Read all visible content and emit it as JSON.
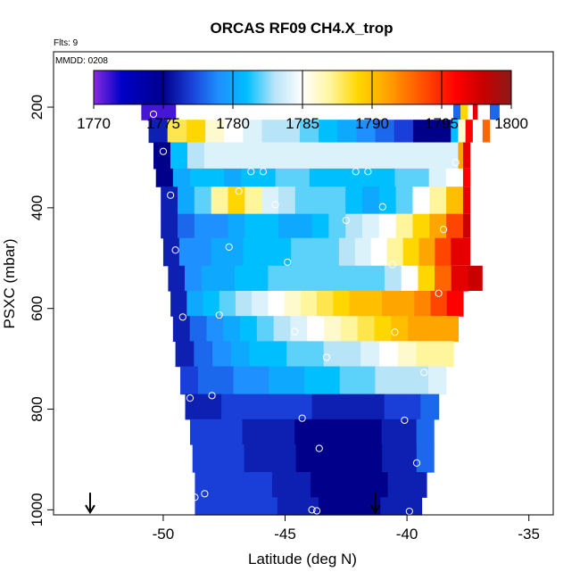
{
  "chart_data": {
    "type": "heatmap",
    "title": "ORCAS RF09 CH4.X_trop",
    "note_flights": "Flts: 9",
    "note_date": "MMDD: 0208",
    "xlabel": "Latitude (deg N)",
    "ylabel": "PSXC (mbar)",
    "xlim": [
      -54.5,
      -34.0
    ],
    "ylim": [
      1010,
      90
    ],
    "x_ticks": [
      -50,
      -45,
      -40,
      -35
    ],
    "x_tick_labels": [
      "-50",
      "-45",
      "-40",
      "-35"
    ],
    "y_ticks": [
      200,
      400,
      600,
      800,
      1000
    ],
    "y_tick_labels": [
      "200",
      "400",
      "600",
      "800",
      "1000"
    ],
    "colorbar": {
      "min": 1770,
      "max": 1800,
      "ticks": [
        1770,
        1775,
        1780,
        1785,
        1790,
        1795,
        1800
      ],
      "tick_labels": [
        "1770",
        "1775",
        "1780",
        "1785",
        "1790",
        "1795",
        "1800"
      ],
      "stops": [
        {
          "v": 1770,
          "c": "#8a2be2"
        },
        {
          "v": 1772,
          "c": "#0000c8"
        },
        {
          "v": 1775,
          "c": "#00008b"
        },
        {
          "v": 1777,
          "c": "#1a3fd8"
        },
        {
          "v": 1779,
          "c": "#1e90ff"
        },
        {
          "v": 1781,
          "c": "#00bfff"
        },
        {
          "v": 1783,
          "c": "#b8e4f7"
        },
        {
          "v": 1785,
          "c": "#ffffff"
        },
        {
          "v": 1787,
          "c": "#fff59d"
        },
        {
          "v": 1789,
          "c": "#ffd700"
        },
        {
          "v": 1791,
          "c": "#ffa500"
        },
        {
          "v": 1794,
          "c": "#ff4500"
        },
        {
          "v": 1796,
          "c": "#ff0000"
        },
        {
          "v": 1798,
          "c": "#c80000"
        },
        {
          "v": 1800,
          "c": "#8b1a1a"
        }
      ]
    },
    "rows": [
      {
        "p0": 175,
        "p1": 225,
        "lat0": -50.9,
        "lat1": -49.5,
        "values": [
          1771,
          1771
        ]
      },
      {
        "p0": 225,
        "p1": 270,
        "lat0": -50.6,
        "lat1": -38.2,
        "values": [
          1776,
          1788,
          1789,
          1786,
          1785,
          1784,
          1783,
          1783,
          1782,
          1781,
          1780,
          1779,
          1778,
          1777,
          1775,
          1775
        ]
      },
      {
        "p0": 270,
        "p1": 322,
        "lat0": -50.4,
        "lat1": -37.9,
        "values": [
          1775,
          1781,
          1783,
          1784,
          1784,
          1784,
          1784,
          1784,
          1784,
          1784,
          1784,
          1784,
          1784,
          1784,
          1784,
          1784,
          1784,
          1784
        ]
      },
      {
        "p0": 322,
        "p1": 358,
        "lat0": -50.3,
        "lat1": -37.7,
        "values": [
          1775,
          1780,
          1781,
          1781,
          1780,
          1781,
          1781,
          1782,
          1782,
          1781,
          1781,
          1781,
          1781,
          1781,
          1782,
          1782,
          1784,
          1785
        ]
      },
      {
        "p0": 358,
        "p1": 412,
        "lat0": -50.1,
        "lat1": -37.7,
        "values": [
          1776,
          1780,
          1782,
          1787,
          1789,
          1787,
          1784,
          1783,
          1782,
          1782,
          1782,
          1781,
          1780,
          1781,
          1782,
          1785,
          1787,
          1790
        ]
      },
      {
        "p0": 412,
        "p1": 460,
        "lat0": -50.1,
        "lat1": -37.7,
        "values": [
          1776,
          1778,
          1779,
          1779,
          1780,
          1781,
          1781,
          1780,
          1780,
          1781,
          1782,
          1783,
          1784,
          1785,
          1787,
          1789,
          1791,
          1794
        ]
      },
      {
        "p0": 460,
        "p1": 515,
        "lat0": -50.0,
        "lat1": -38.2,
        "values": [
          1776,
          1779,
          1779,
          1780,
          1780,
          1781,
          1781,
          1781,
          1782,
          1782,
          1782,
          1783,
          1784,
          1785,
          1787,
          1789,
          1791,
          1794
        ]
      },
      {
        "p0": 515,
        "p1": 565,
        "lat0": -49.8,
        "lat1": -37.5,
        "values": [
          1776,
          1779,
          1780,
          1780,
          1781,
          1781,
          1782,
          1782,
          1782,
          1782,
          1782,
          1782,
          1782,
          1783,
          1785,
          1789,
          1793,
          1797
        ]
      },
      {
        "p0": 565,
        "p1": 615,
        "lat0": -49.7,
        "lat1": -37.7,
        "values": [
          1776,
          1780,
          1781,
          1782,
          1783,
          1784,
          1785,
          1786,
          1787,
          1788,
          1789,
          1790,
          1790,
          1791,
          1791,
          1792,
          1794,
          1796
        ]
      },
      {
        "p0": 615,
        "p1": 665,
        "lat0": -49.6,
        "lat1": -37.9,
        "values": [
          1776,
          1778,
          1779,
          1780,
          1781,
          1782,
          1783,
          1784,
          1785,
          1786,
          1787,
          1788,
          1789,
          1790,
          1791,
          1791,
          1791
        ]
      },
      {
        "p0": 665,
        "p1": 715,
        "lat0": -49.5,
        "lat1": -38.1,
        "values": [
          1776,
          1778,
          1779,
          1780,
          1781,
          1781,
          1782,
          1782,
          1783,
          1783,
          1784,
          1785,
          1786,
          1787,
          1787
        ]
      },
      {
        "p0": 715,
        "p1": 770,
        "lat0": -49.3,
        "lat1": -38.4,
        "values": [
          1777,
          1778,
          1778,
          1779,
          1779,
          1780,
          1780,
          1781,
          1781,
          1782,
          1782,
          1783,
          1783,
          1783,
          1784
        ]
      },
      {
        "p0": 770,
        "p1": 820,
        "lat0": -49.1,
        "lat1": -38.7,
        "values": [
          1776,
          1776,
          1777,
          1777,
          1777,
          1777,
          1777,
          1776,
          1776,
          1776,
          1776,
          1777,
          1777,
          1778
        ]
      },
      {
        "p0": 820,
        "p1": 870,
        "lat0": -48.9,
        "lat1": -38.9,
        "values": [
          1777,
          1777,
          1777,
          1776,
          1776,
          1776,
          1775,
          1775,
          1775,
          1775,
          1775,
          1776,
          1776,
          1778
        ]
      },
      {
        "p0": 870,
        "p1": 925,
        "lat0": -48.8,
        "lat1": -38.9,
        "values": [
          1777,
          1777,
          1777,
          1776,
          1776,
          1776,
          1775,
          1775,
          1775,
          1775,
          1775,
          1776,
          1776,
          1778
        ]
      },
      {
        "p0": 925,
        "p1": 975,
        "lat0": -48.7,
        "lat1": -39.2,
        "values": [
          1777,
          1777,
          1777,
          1777,
          1776,
          1776,
          1775,
          1775,
          1775,
          1775,
          1776,
          1776
        ]
      },
      {
        "p0": 975,
        "p1": 1010,
        "lat0": -48.7,
        "lat1": -39.4,
        "values": [
          1777,
          1777,
          1777,
          1777,
          1776,
          1776,
          1775,
          1775,
          1775,
          1776,
          1776
        ]
      }
    ],
    "extra_cells": [
      {
        "lat0": -38.1,
        "lat1": -37.8,
        "p0": 175,
        "p1": 225,
        "value": 1778
      },
      {
        "lat0": -37.8,
        "lat1": -37.5,
        "p0": 175,
        "p1": 225,
        "value": 1789
      },
      {
        "lat0": -37.3,
        "lat1": -37.1,
        "p0": 175,
        "p1": 225,
        "value": 1797
      },
      {
        "lat0": -36.6,
        "lat1": -36.2,
        "p0": 175,
        "p1": 225,
        "value": 1778
      },
      {
        "lat0": -38.2,
        "lat1": -37.9,
        "p0": 225,
        "p1": 270,
        "value": 1781
      },
      {
        "lat0": -37.9,
        "lat1": -37.6,
        "p0": 225,
        "p1": 270,
        "value": 1786
      },
      {
        "lat0": -37.6,
        "lat1": -37.3,
        "p0": 225,
        "p1": 270,
        "value": 1796
      },
      {
        "lat0": -36.9,
        "lat1": -36.6,
        "p0": 225,
        "p1": 270,
        "value": 1793
      },
      {
        "lat0": -37.9,
        "lat1": -37.7,
        "p0": 270,
        "p1": 322,
        "value": 1791
      },
      {
        "lat0": -37.7,
        "lat1": -37.4,
        "p0": 270,
        "p1": 322,
        "value": 1797
      },
      {
        "lat0": -37.7,
        "lat1": -37.4,
        "p0": 322,
        "p1": 358,
        "value": 1796
      },
      {
        "lat0": -37.7,
        "lat1": -37.4,
        "p0": 358,
        "p1": 412,
        "value": 1797
      },
      {
        "lat0": -37.7,
        "lat1": -37.4,
        "p0": 412,
        "p1": 460,
        "value": 1798
      },
      {
        "lat0": -38.2,
        "lat1": -37.4,
        "p0": 460,
        "p1": 515,
        "value": 1797
      },
      {
        "lat0": -37.5,
        "lat1": -36.9,
        "p0": 515,
        "p1": 565,
        "value": 1798
      }
    ],
    "points": [
      {
        "lat": -50.8,
        "p": 188
      },
      {
        "lat": -50.4,
        "p": 214
      },
      {
        "lat": -50.0,
        "p": 288
      },
      {
        "lat": -49.7,
        "p": 375
      },
      {
        "lat": -49.5,
        "p": 484
      },
      {
        "lat": -49.2,
        "p": 617
      },
      {
        "lat": -48.9,
        "p": 778
      },
      {
        "lat": -48.7,
        "p": 975
      },
      {
        "lat": -48.3,
        "p": 968
      },
      {
        "lat": -48.0,
        "p": 773
      },
      {
        "lat": -47.7,
        "p": 613
      },
      {
        "lat": -47.3,
        "p": 478
      },
      {
        "lat": -46.9,
        "p": 367
      },
      {
        "lat": -46.4,
        "p": 328
      },
      {
        "lat": -45.9,
        "p": 328
      },
      {
        "lat": -45.4,
        "p": 394
      },
      {
        "lat": -44.9,
        "p": 508
      },
      {
        "lat": -44.6,
        "p": 646
      },
      {
        "lat": -44.3,
        "p": 818
      },
      {
        "lat": -43.9,
        "p": 1000
      },
      {
        "lat": -43.7,
        "p": 1002
      },
      {
        "lat": -43.6,
        "p": 878
      },
      {
        "lat": -43.3,
        "p": 697
      },
      {
        "lat": -42.5,
        "p": 425
      },
      {
        "lat": -42.1,
        "p": 328
      },
      {
        "lat": -41.6,
        "p": 328
      },
      {
        "lat": -41.0,
        "p": 398
      },
      {
        "lat": -40.6,
        "p": 513
      },
      {
        "lat": -40.5,
        "p": 647
      },
      {
        "lat": -40.1,
        "p": 822
      },
      {
        "lat": -39.9,
        "p": 1003
      },
      {
        "lat": -39.6,
        "p": 907
      },
      {
        "lat": -39.3,
        "p": 727
      },
      {
        "lat": -38.7,
        "p": 570
      },
      {
        "lat": -38.5,
        "p": 443
      },
      {
        "lat": -38.0,
        "p": 310
      },
      {
        "lat": -38.0,
        "p": 188
      },
      {
        "lat": -37.7,
        "p": 188
      },
      {
        "lat": -36.6,
        "p": 188
      },
      {
        "lat": -36.8,
        "p": 198
      }
    ],
    "arrows": [
      {
        "lat": -53.0,
        "p": 1005
      },
      {
        "lat": -41.3,
        "p": 1005
      }
    ]
  }
}
